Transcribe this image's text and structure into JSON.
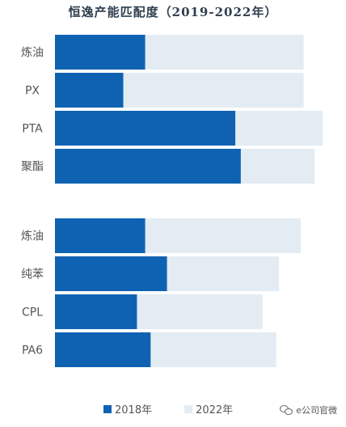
{
  "colors": {
    "series_2018": "#0f62b2",
    "series_2022": "#e4ecf3",
    "category_label": "#555555"
  },
  "watermark": {
    "icon": "wechat-icon",
    "text": "e公司官微"
  },
  "chart_data": {
    "type": "bar",
    "orientation": "horizontal",
    "layout": "overlapped",
    "title": "恒逸产能匹配度（2019-2022年）",
    "xlabel": "",
    "ylabel": "",
    "xlim": [
      0,
      100
    ],
    "grid": false,
    "legend_position": "bottom",
    "groups": [
      {
        "categories": [
          "炼油",
          "PX",
          "PTA",
          "聚酯"
        ],
        "series": [
          {
            "name": "2018年",
            "values": [
              33,
              25,
              66,
              68
            ]
          },
          {
            "name": "2022年",
            "values": [
              91,
              91,
              98,
              95
            ]
          }
        ]
      },
      {
        "categories": [
          "炼油",
          "纯苯",
          "CPL",
          "PA6"
        ],
        "series": [
          {
            "name": "2018年",
            "values": [
              33,
              41,
              30,
              35
            ]
          },
          {
            "name": "2022年",
            "values": [
              90,
              82,
              76,
              81
            ]
          }
        ]
      }
    ]
  }
}
